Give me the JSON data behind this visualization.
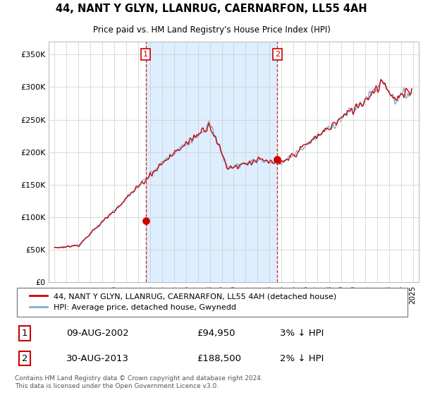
{
  "title": "44, NANT Y GLYN, LLANRUG, CAERNARFON, LL55 4AH",
  "subtitle": "Price paid vs. HM Land Registry's House Price Index (HPI)",
  "legend_line1": "44, NANT Y GLYN, LLANRUG, CAERNARFON, LL55 4AH (detached house)",
  "legend_line2": "HPI: Average price, detached house, Gwynedd",
  "footer": "Contains HM Land Registry data © Crown copyright and database right 2024.\nThis data is licensed under the Open Government Licence v3.0.",
  "annotation1": {
    "label": "1",
    "date": "09-AUG-2002",
    "price": "£94,950",
    "note": "3% ↓ HPI"
  },
  "annotation2": {
    "label": "2",
    "date": "30-AUG-2013",
    "price": "£188,500",
    "note": "2% ↓ HPI"
  },
  "xlim": [
    1994.5,
    2025.5
  ],
  "ylim": [
    0,
    370000
  ],
  "yticks": [
    0,
    50000,
    100000,
    150000,
    200000,
    250000,
    300000,
    350000
  ],
  "ytick_labels": [
    "£0",
    "£50K",
    "£100K",
    "£150K",
    "£200K",
    "£250K",
    "£300K",
    "£350K"
  ],
  "sale1_x": 2002.62,
  "sale1_y": 94950,
  "sale2_x": 2013.66,
  "sale2_y": 188500,
  "vline1_x": 2002.62,
  "vline2_x": 2013.66,
  "red_color": "#cc0000",
  "blue_color": "#7ab0d4",
  "shade_color": "#ddeeff",
  "background_color": "#ffffff",
  "grid_color": "#cccccc"
}
